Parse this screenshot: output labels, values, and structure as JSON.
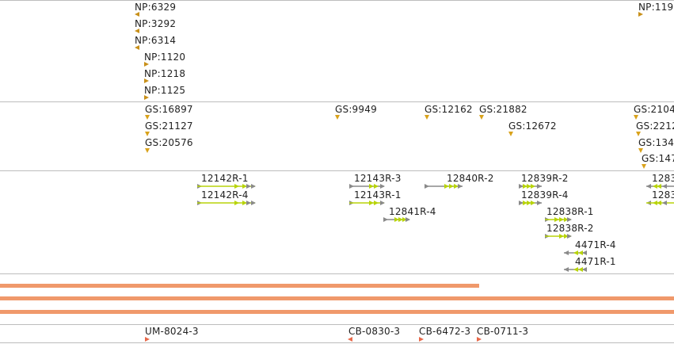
{
  "np_track": {
    "features": [
      "NP:6329",
      "NP:3292",
      "NP:6314",
      "NP:1120",
      "NP:1218",
      "NP:1125",
      "NP:119"
    ]
  },
  "gs_track": {
    "features": [
      "GS:16897",
      "GS:21127",
      "GS:20576",
      "GS:9949",
      "GS:12162",
      "GS:21882",
      "GS:12672",
      "GS:2104",
      "GS:2212",
      "GS:134",
      "GS:147"
    ]
  },
  "transcript_track": {
    "features": [
      "12142R-1",
      "12142R-4",
      "12143R-3",
      "12143R-1",
      "12841R-4",
      "12840R-2",
      "12839R-2",
      "12839R-4",
      "12838R-1",
      "12838R-2",
      "4471R-4",
      "4471R-1",
      "1283",
      "1283"
    ]
  },
  "clone_track": {
    "features": [
      "UM-8024-3",
      "CB-0830-3",
      "CB-6472-3",
      "CB-0711-3"
    ]
  },
  "colors": {
    "np_marker": "#c8901a",
    "gs_marker": "#d9a21b",
    "exon_green": "#b8d40a",
    "intron_grey": "#8a8a8a",
    "coverage_bar": "#f0996b",
    "clone_marker": "#e8694a",
    "divider": "#bdbdbd"
  }
}
